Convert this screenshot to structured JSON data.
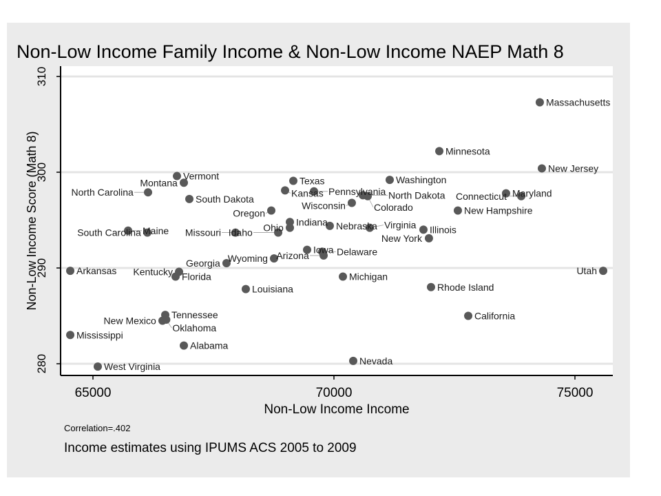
{
  "chart_data": {
    "type": "scatter",
    "title": "Non-Low Income Family Income & Non-Low Income NAEP Math 8",
    "xlabel": "Non-Low Income Income",
    "ylabel": "Non-Low Income Score (Math 8)",
    "xlim": [
      64500,
      75900
    ],
    "ylim": [
      279.5,
      310.5
    ],
    "xticks": [
      65000,
      70000,
      75000
    ],
    "yticks": [
      280,
      290,
      300,
      310
    ],
    "grid": true,
    "marker_color": "#595959",
    "points": [
      {
        "label": "Massachusetts",
        "x": 74271,
        "y": 307.3
      },
      {
        "label": "Minnesota",
        "x": 72186,
        "y": 302.2
      },
      {
        "label": "New Jersey",
        "x": 74314,
        "y": 300.4
      },
      {
        "label": "Washington",
        "x": 71157,
        "y": 299.2
      },
      {
        "label": "Maryland",
        "x": 73571,
        "y": 297.8
      },
      {
        "label": "Connecticut",
        "x": 73886,
        "y": 297.5
      },
      {
        "label": "New Hampshire",
        "x": 72571,
        "y": 296.0
      },
      {
        "label": "Illinois",
        "x": 71857,
        "y": 294.0
      },
      {
        "label": "New York",
        "x": 71971,
        "y": 293.1
      },
      {
        "label": "Rhode Island",
        "x": 72014,
        "y": 288.0
      },
      {
        "label": "California",
        "x": 72786,
        "y": 285.0
      },
      {
        "label": "Utah",
        "x": 75586,
        "y": 289.7
      },
      {
        "label": "Vermont",
        "x": 66743,
        "y": 299.6
      },
      {
        "label": "Montana",
        "x": 66886,
        "y": 298.9
      },
      {
        "label": "North Carolina",
        "x": 66143,
        "y": 297.9
      },
      {
        "label": "South Dakota",
        "x": 67000,
        "y": 297.2
      },
      {
        "label": "Texas",
        "x": 69157,
        "y": 299.1
      },
      {
        "label": "Kansas",
        "x": 68986,
        "y": 298.1
      },
      {
        "label": "Pennsylvania",
        "x": 69586,
        "y": 298.0
      },
      {
        "label": "North Dakota",
        "x": 70600,
        "y": 297.6
      },
      {
        "label": "Colorado",
        "x": 70700,
        "y": 297.5
      },
      {
        "label": "Wisconsin",
        "x": 70371,
        "y": 296.8
      },
      {
        "label": "Oregon",
        "x": 68700,
        "y": 296.0
      },
      {
        "label": "Indiana",
        "x": 69086,
        "y": 294.8
      },
      {
        "label": "Ohio",
        "x": 69086,
        "y": 294.2
      },
      {
        "label": "Nebraska",
        "x": 69914,
        "y": 294.4
      },
      {
        "label": "Virginia",
        "x": 70743,
        "y": 294.2
      },
      {
        "label": "Idaho",
        "x": 68843,
        "y": 293.7
      },
      {
        "label": "Missouri",
        "x": 67957,
        "y": 293.7
      },
      {
        "label": "South Carolina",
        "x": 66129,
        "y": 293.7
      },
      {
        "label": "Maine",
        "x": 65729,
        "y": 293.9
      },
      {
        "label": "Iowa",
        "x": 69443,
        "y": 291.9
      },
      {
        "label": "Delaware",
        "x": 69757,
        "y": 291.7
      },
      {
        "label": "Arizona",
        "x": 69786,
        "y": 291.3
      },
      {
        "label": "Wyoming",
        "x": 68757,
        "y": 291.0
      },
      {
        "label": "Georgia",
        "x": 67771,
        "y": 290.5
      },
      {
        "label": "Kentucky",
        "x": 66786,
        "y": 289.6
      },
      {
        "label": "Florida",
        "x": 66714,
        "y": 289.1
      },
      {
        "label": "Arkansas",
        "x": 64529,
        "y": 289.7
      },
      {
        "label": "Michigan",
        "x": 70186,
        "y": 289.1
      },
      {
        "label": "Louisiana",
        "x": 68171,
        "y": 287.8
      },
      {
        "label": "Tennessee",
        "x": 66500,
        "y": 285.1
      },
      {
        "label": "New Mexico",
        "x": 66443,
        "y": 284.5
      },
      {
        "label": "Oklahoma",
        "x": 66520,
        "y": 284.6
      },
      {
        "label": "Alabama",
        "x": 66886,
        "y": 281.9
      },
      {
        "label": "Mississippi",
        "x": 64529,
        "y": 283.0
      },
      {
        "label": "West Virginia",
        "x": 65100,
        "y": 279.7
      },
      {
        "label": "Nevada",
        "x": 70400,
        "y": 280.3
      }
    ]
  },
  "notes": {
    "correlation": "Correlation=.402",
    "source": "Income estimates using IPUMS ACS 2005 to 2009"
  }
}
